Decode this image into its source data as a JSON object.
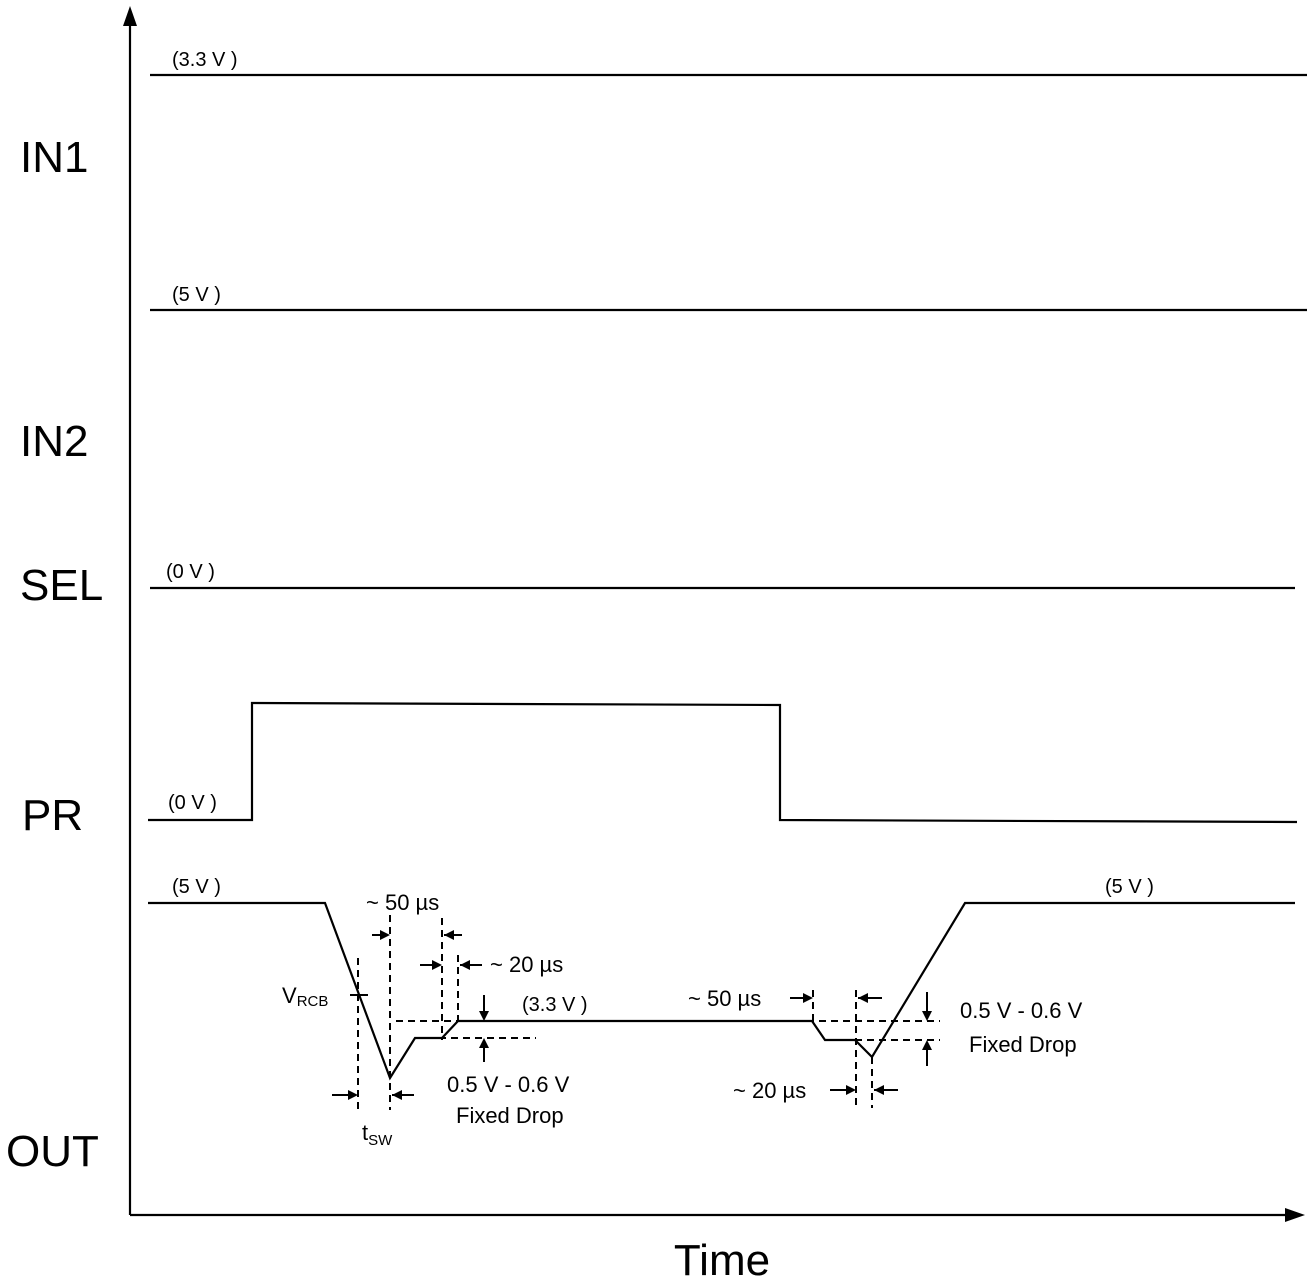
{
  "signals": {
    "in1": {
      "label": "IN1",
      "level": "(3.3 V )"
    },
    "in2": {
      "label": "IN2",
      "level": "(5 V )"
    },
    "sel": {
      "label": "SEL",
      "level": "(0 V )"
    },
    "pr": {
      "label": "PR",
      "level": "(0 V )"
    },
    "out": {
      "label": "OUT",
      "level_start": "(5 V )",
      "level_mid": "(3.3 V )",
      "level_end": "(5 V )"
    }
  },
  "axis": {
    "x_label": "Time"
  },
  "annotations": {
    "t50_left": "~ 50 µs",
    "t20_left": "~ 20 µs",
    "vrcb_main": "V",
    "vrcb_sub": "RCB",
    "tsw_main": "t",
    "tsw_sub": "SW",
    "drop_left_line1": "0.5 V - 0.6 V",
    "drop_left_line2": "Fixed Drop",
    "t50_right": "~ 50 µs",
    "t20_right": "~ 20 µs",
    "drop_right_line1": "0.5 V - 0.6 V",
    "drop_right_line2": "Fixed Drop"
  },
  "colors": {
    "ink": "#000000",
    "background": "#ffffff"
  }
}
